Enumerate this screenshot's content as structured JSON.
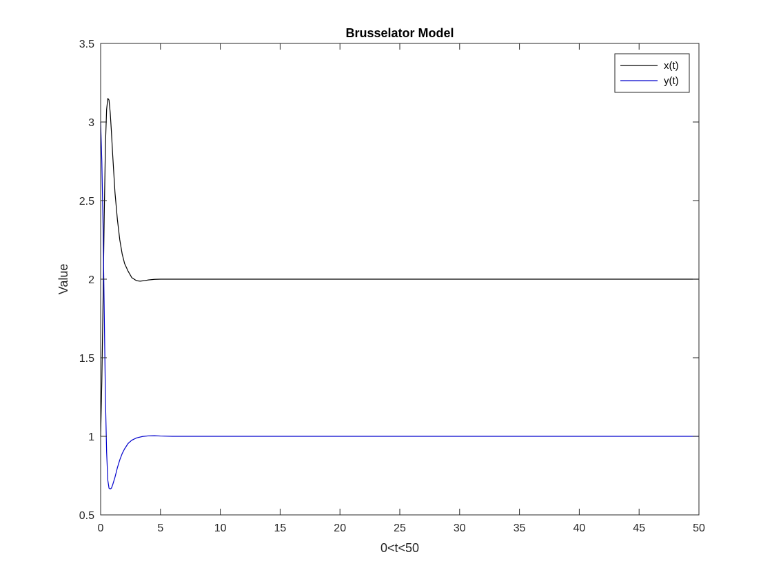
{
  "chart_data": {
    "type": "line",
    "title": "Brusselator Model",
    "xlabel": "0<t<50",
    "ylabel": "Value",
    "xlim": [
      0,
      50
    ],
    "ylim": [
      0.5,
      3.5
    ],
    "xticks": [
      0,
      5,
      10,
      15,
      20,
      25,
      30,
      35,
      40,
      45,
      50
    ],
    "yticks": [
      0.5,
      1,
      1.5,
      2,
      2.5,
      3,
      3.5
    ],
    "xtick_labels": [
      "0",
      "5",
      "10",
      "15",
      "20",
      "25",
      "30",
      "35",
      "40",
      "45",
      "50"
    ],
    "ytick_labels": [
      "0.5",
      "1",
      "1.5",
      "2",
      "2.5",
      "3",
      "3.5"
    ],
    "grid": false,
    "legend_position": "top-right",
    "series": [
      {
        "name": "x(t)",
        "color": "#000000",
        "x": [
          0,
          0.1,
          0.2,
          0.3,
          0.4,
          0.5,
          0.6,
          0.7,
          0.8,
          0.9,
          1.0,
          1.2,
          1.4,
          1.6,
          1.8,
          2.0,
          2.3,
          2.6,
          3.0,
          3.3,
          3.6,
          4.0,
          4.5,
          5.0,
          5.5,
          6.0,
          8.0,
          10,
          20,
          30,
          40,
          50
        ],
        "y": [
          1.0,
          1.35,
          1.85,
          2.4,
          2.85,
          3.08,
          3.15,
          3.14,
          3.06,
          2.94,
          2.8,
          2.55,
          2.38,
          2.25,
          2.16,
          2.1,
          2.05,
          2.01,
          1.99,
          1.987,
          1.99,
          1.995,
          1.999,
          2.0,
          2.0,
          2.0,
          2.0,
          2.0,
          2.0,
          2.0,
          2.0,
          2.0
        ]
      },
      {
        "name": "y(t)",
        "color": "#0000cc",
        "x": [
          0,
          0.1,
          0.2,
          0.3,
          0.4,
          0.5,
          0.6,
          0.7,
          0.8,
          0.9,
          1.0,
          1.2,
          1.4,
          1.6,
          1.8,
          2.0,
          2.3,
          2.6,
          3.0,
          3.5,
          4.0,
          4.5,
          5.0,
          6.0,
          8.0,
          10,
          20,
          30,
          40,
          50
        ],
        "y": [
          3.0,
          2.75,
          2.35,
          1.8,
          1.25,
          0.9,
          0.72,
          0.67,
          0.665,
          0.67,
          0.69,
          0.74,
          0.8,
          0.85,
          0.89,
          0.92,
          0.955,
          0.975,
          0.99,
          0.999,
          1.003,
          1.004,
          1.002,
          1.0,
          1.0,
          1.0,
          1.0,
          1.0,
          1.0,
          1.0
        ]
      }
    ]
  }
}
